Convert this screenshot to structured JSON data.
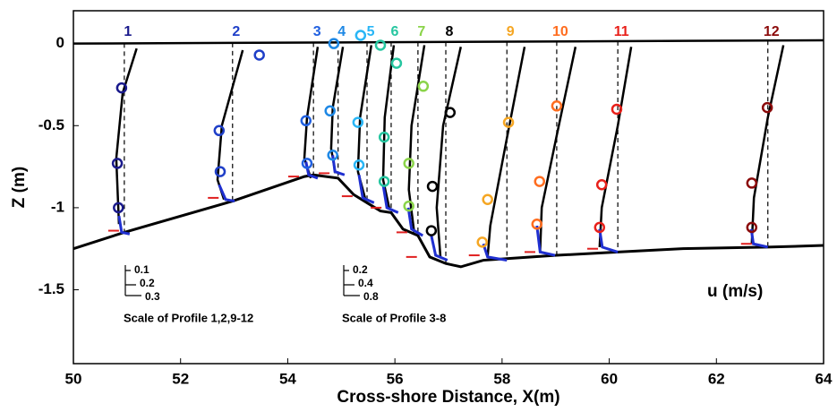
{
  "chart_data": {
    "type": "profiles",
    "xlabel": "Cross-shore Distance, X(m)",
    "ylabel": "Z (m)",
    "xlim": [
      50,
      64
    ],
    "ylim": [
      -1.95,
      0.2
    ],
    "xticks": [
      50,
      52,
      54,
      56,
      58,
      60,
      62,
      64
    ],
    "yticks": [
      0,
      -0.5,
      -1,
      -1.5
    ],
    "surface": {
      "x": [
        50,
        64
      ],
      "z": [
        0,
        0.02
      ]
    },
    "bed": {
      "x": [
        50,
        50.95,
        52.97,
        54.31,
        54.48,
        54.94,
        55.23,
        55.48,
        55.73,
        55.93,
        56.15,
        56.43,
        56.65,
        56.95,
        57.23,
        57.65,
        58.09,
        59.02,
        60.16,
        61.33,
        62.96,
        64
      ],
      "z": [
        -1.25,
        -1.15,
        -0.96,
        -0.81,
        -0.8,
        -0.82,
        -0.92,
        -0.97,
        -1.02,
        -1.03,
        -1.13,
        -1.17,
        -1.3,
        -1.34,
        -1.36,
        -1.32,
        -1.31,
        -1.29,
        -1.27,
        -1.25,
        -1.24,
        -1.23
      ]
    },
    "profiles": [
      {
        "name": "1",
        "color": "#1a1a8c",
        "station": 50.95,
        "bed_z": -1.15,
        "model": {
          "x": [
            51.18,
            50.92,
            50.8,
            50.85
          ],
          "z": [
            -0.03,
            -0.3,
            -0.7,
            -1.1
          ]
        },
        "measured": {
          "x": [
            50.9,
            50.82,
            50.84
          ],
          "z": [
            -0.27,
            -0.73,
            -1.0
          ]
        },
        "near_bed": {
          "x": [
            50.85,
            50.9,
            51.05
          ],
          "z": [
            -1.05,
            -1.15,
            -1.16
          ]
        },
        "bed_mark": {
          "x": 50.75,
          "z": -1.14
        }
      },
      {
        "name": "2",
        "color": "#1f3fc8",
        "station": 52.97,
        "bed_z": -0.96,
        "model": {
          "x": [
            53.16,
            52.77,
            52.69,
            52.81
          ],
          "z": [
            -0.04,
            -0.5,
            -0.83,
            -0.95
          ]
        },
        "measured": {
          "x": [
            52.72,
            52.74,
            53.47
          ],
          "z": [
            -0.53,
            -0.78,
            -0.07
          ]
        },
        "near_bed": {
          "x": [
            52.72,
            52.84,
            53.01
          ],
          "z": [
            -0.86,
            -0.95,
            -0.96
          ]
        },
        "bed_mark": {
          "x": 52.61,
          "z": -0.94
        }
      },
      {
        "name": "3",
        "color": "#2060e0",
        "station": 54.48,
        "bed_z": -0.81,
        "model": {
          "x": [
            54.56,
            54.36,
            54.31,
            54.43
          ],
          "z": [
            -0.02,
            -0.45,
            -0.7,
            -0.82
          ]
        },
        "measured": {
          "x": [
            54.34,
            54.36
          ],
          "z": [
            -0.47,
            -0.73
          ]
        },
        "near_bed": {
          "x": [
            54.34,
            54.39,
            54.56
          ],
          "z": [
            -0.72,
            -0.8,
            -0.82
          ]
        },
        "bed_mark": {
          "x": 54.11,
          "z": -0.81
        }
      },
      {
        "name": "4",
        "color": "#1e88e5",
        "station": 54.94,
        "bed_z": -0.82,
        "model": {
          "x": [
            55.03,
            54.84,
            54.81,
            54.89
          ],
          "z": [
            -0.02,
            -0.39,
            -0.64,
            -0.79
          ]
        },
        "measured": {
          "x": [
            54.86,
            54.79,
            54.84
          ],
          "z": [
            0.0,
            -0.41,
            -0.68
          ]
        },
        "near_bed": {
          "x": [
            54.84,
            54.88,
            55.06
          ],
          "z": [
            -0.68,
            -0.78,
            -0.8
          ]
        },
        "bed_mark": {
          "x": 54.68,
          "z": -0.79
        }
      },
      {
        "name": "5",
        "color": "#29b6f6",
        "station": 55.48,
        "bed_z": -0.97,
        "model": {
          "x": [
            55.56,
            55.35,
            55.31,
            55.45
          ],
          "z": [
            -0.01,
            -0.45,
            -0.78,
            -0.95
          ]
        },
        "measured": {
          "x": [
            55.36,
            55.31,
            55.33
          ],
          "z": [
            0.05,
            -0.48,
            -0.74
          ]
        },
        "near_bed": {
          "x": [
            55.33,
            55.4,
            55.61
          ],
          "z": [
            -0.8,
            -0.94,
            -0.97
          ]
        },
        "bed_mark": {
          "x": 55.11,
          "z": -0.93
        }
      },
      {
        "name": "6",
        "color": "#26c6a0",
        "station": 55.93,
        "bed_z": -1.03,
        "model": {
          "x": [
            55.98,
            55.81,
            55.78,
            55.9
          ],
          "z": [
            -0.01,
            -0.45,
            -0.83,
            -1.01
          ]
        },
        "measured": {
          "x": [
            55.73,
            56.03,
            55.8,
            55.8
          ],
          "z": [
            -0.01,
            -0.12,
            -0.57,
            -0.84
          ]
        },
        "near_bed": {
          "x": [
            55.78,
            55.85,
            56.06
          ],
          "z": [
            -0.86,
            -1.0,
            -1.03
          ]
        },
        "bed_mark": {
          "x": 55.65,
          "z": -1.0
        }
      },
      {
        "name": "7",
        "color": "#8bd44a",
        "station": 56.43,
        "bed_z": -1.17,
        "model": {
          "x": [
            56.55,
            56.31,
            56.26,
            56.36
          ],
          "z": [
            -0.01,
            -0.5,
            -0.89,
            -1.15
          ]
        },
        "measured": {
          "x": [
            56.53,
            56.26,
            56.26
          ],
          "z": [
            -0.26,
            -0.73,
            -0.99
          ]
        },
        "near_bed": {
          "x": [
            56.25,
            56.31,
            56.52
          ],
          "z": [
            -1.0,
            -1.13,
            -1.17
          ]
        },
        "bed_mark": {
          "x": 56.13,
          "z": -1.15
        }
      },
      {
        "name": "8",
        "color": "#000000",
        "station": 56.95,
        "bed_z": -1.34,
        "model": {
          "x": [
            57.23,
            56.9,
            56.78,
            56.85
          ],
          "z": [
            -0.02,
            -0.5,
            -1.0,
            -1.3
          ]
        },
        "measured": {
          "x": [
            57.03,
            56.7,
            56.68
          ],
          "z": [
            -0.42,
            -0.87,
            -1.14
          ]
        },
        "near_bed": {
          "x": [
            56.68,
            56.76,
            56.98
          ],
          "z": [
            -1.17,
            -1.29,
            -1.32
          ]
        },
        "bed_mark": {
          "x": 56.31,
          "z": -1.3
        }
      },
      {
        "name": "9",
        "color": "#f5a623",
        "station": 58.09,
        "bed_z": -1.31,
        "model": {
          "x": [
            58.42,
            58.07,
            57.78,
            57.73
          ],
          "z": [
            -0.02,
            -0.61,
            -1.11,
            -1.3
          ]
        },
        "measured": {
          "x": [
            58.12,
            57.73,
            57.63
          ],
          "z": [
            -0.48,
            -0.95,
            -1.21
          ]
        },
        "near_bed": {
          "x": [
            57.65,
            57.73,
            58.09
          ],
          "z": [
            -1.22,
            -1.3,
            -1.32
          ]
        },
        "bed_mark": {
          "x": 57.48,
          "z": -1.29
        }
      },
      {
        "name": "10",
        "color": "#ff6d1f",
        "station": 59.02,
        "bed_z": -1.29,
        "model": {
          "x": [
            59.37,
            59.02,
            58.74,
            58.71
          ],
          "z": [
            -0.02,
            -0.56,
            -1.0,
            -1.27
          ]
        },
        "measured": {
          "x": [
            59.02,
            58.7,
            58.65
          ],
          "z": [
            -0.38,
            -0.84,
            -1.1
          ]
        },
        "near_bed": {
          "x": [
            58.65,
            58.71,
            58.99
          ],
          "z": [
            -1.11,
            -1.27,
            -1.29
          ]
        },
        "bed_mark": {
          "x": 58.52,
          "z": -1.27
        }
      },
      {
        "name": "11",
        "color": "#e8201a",
        "station": 60.16,
        "bed_z": -1.27,
        "model": {
          "x": [
            60.41,
            60.16,
            59.86,
            59.82
          ],
          "z": [
            -0.02,
            -0.5,
            -1.0,
            -1.24
          ]
        },
        "measured": {
          "x": [
            60.14,
            59.86,
            59.82
          ],
          "z": [
            -0.4,
            -0.86,
            -1.12
          ]
        },
        "near_bed": {
          "x": [
            59.82,
            59.87,
            60.16
          ],
          "z": [
            -1.13,
            -1.24,
            -1.27
          ]
        },
        "bed_mark": {
          "x": 59.69,
          "z": -1.25
        }
      },
      {
        "name": "12",
        "color": "#8b0a0a",
        "station": 62.96,
        "bed_z": -1.24,
        "model": {
          "x": [
            63.25,
            62.96,
            62.7,
            62.66
          ],
          "z": [
            -0.01,
            -0.45,
            -0.94,
            -1.22
          ]
        },
        "measured": {
          "x": [
            62.95,
            62.66,
            62.66
          ],
          "z": [
            -0.39,
            -0.85,
            -1.12
          ]
        },
        "near_bed": {
          "x": [
            62.65,
            62.69,
            62.96
          ],
          "z": [
            -1.13,
            -1.22,
            -1.24
          ]
        },
        "bed_mark": {
          "x": 62.56,
          "z": -1.22
        }
      }
    ],
    "unit_label": "u (m/s)",
    "scales": [
      {
        "ticks": [
          0.1,
          0.2,
          0.3
        ],
        "caption": "Scale of Profile 1,2,9-12"
      },
      {
        "ticks": [
          0.2,
          0.4,
          0.8
        ],
        "caption": "Scale of Profile 3-8"
      }
    ]
  }
}
